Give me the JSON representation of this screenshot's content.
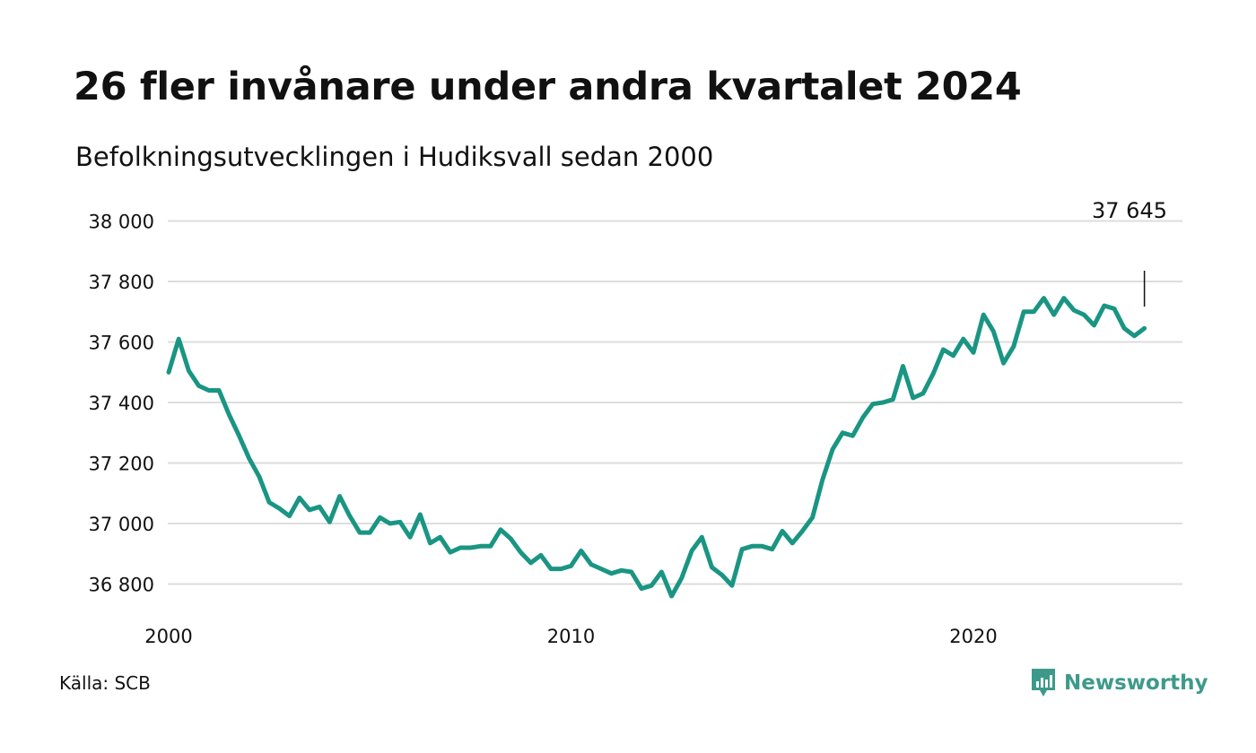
{
  "title": "26 fler invånare under andra kvartalet 2024",
  "subtitle": "Befolkningsutvecklingen i Hudiksvall sedan 2000",
  "source": "Källa: SCB",
  "brand": "Newsworthy",
  "colors": {
    "line": "#1a9583",
    "grid": "#dddddd",
    "brand": "#3d9a8a",
    "annotation": "#111111"
  },
  "chart_data": {
    "type": "line",
    "title": "26 fler invånare under andra kvartalet 2024",
    "subtitle": "Befolkningsutvecklingen i Hudiksvall sedan 2000",
    "xlabel": "",
    "ylabel": "",
    "x_start": 2000.0,
    "x_step": 0.25,
    "xlim": [
      2000.0,
      2025.25
    ],
    "ylim": [
      36750,
      38050
    ],
    "y_ticks": [
      36800,
      37000,
      37200,
      37400,
      37600,
      37800,
      38000
    ],
    "y_tick_labels": [
      "36 800",
      "37 000",
      "37 200",
      "37 400",
      "37 600",
      "37 800",
      "38 000"
    ],
    "x_ticks": [
      2000,
      2010,
      2020
    ],
    "x_tick_labels": [
      "2000",
      "2010",
      "2020"
    ],
    "grid": "horizontal",
    "annotation": {
      "label": "37 645",
      "x": 2024.25,
      "value": 37645
    },
    "series": [
      {
        "values": [
          37500,
          37610,
          37505,
          37455,
          37440,
          37440,
          37360,
          37290,
          37215,
          37155,
          37070,
          37050,
          37025,
          37085,
          37045,
          37055,
          37005,
          37090,
          37025,
          36970,
          36970,
          37020,
          37000,
          37005,
          36955,
          37030,
          36935,
          36955,
          36905,
          36920,
          36920,
          36925,
          36925,
          36980,
          36950,
          36905,
          36870,
          36895,
          36850,
          36850,
          36860,
          36910,
          36865,
          36850,
          36835,
          36845,
          36840,
          36785,
          36795,
          36840,
          36760,
          36820,
          36910,
          36955,
          36855,
          36830,
          36795,
          36915,
          36925,
          36925,
          36915,
          36975,
          36935,
          36975,
          37020,
          37145,
          37245,
          37300,
          37290,
          37350,
          37395,
          37400,
          37410,
          37520,
          37415,
          37430,
          37495,
          37575,
          37555,
          37610,
          37565,
          37690,
          37635,
          37530,
          37585,
          37700,
          37700,
          37745,
          37690,
          37745,
          37705,
          37690,
          37655,
          37720,
          37710,
          37645,
          37620,
          37645
        ]
      }
    ]
  }
}
